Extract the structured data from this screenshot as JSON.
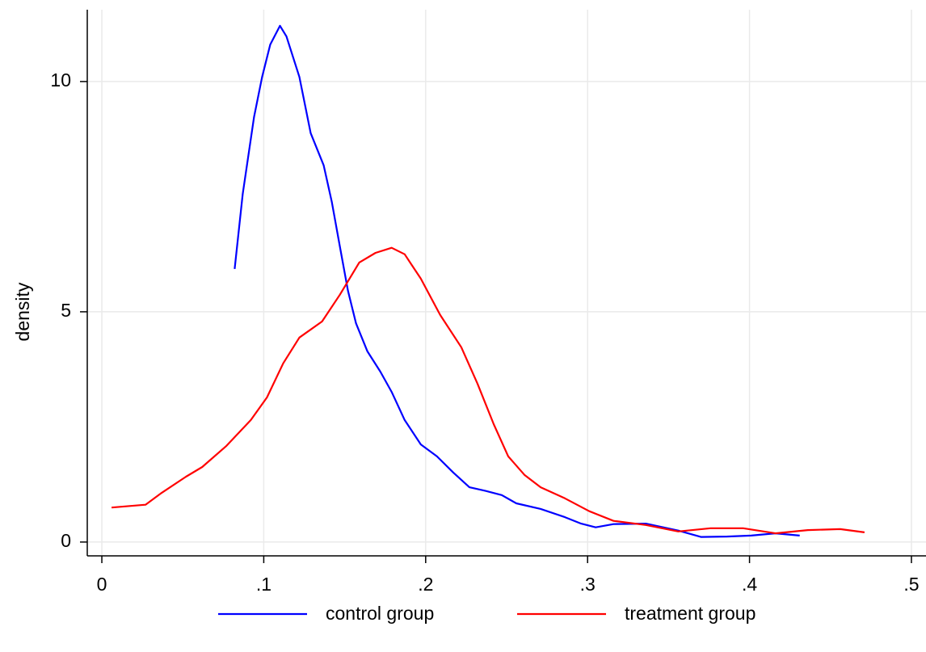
{
  "chart_data": {
    "type": "line",
    "y_label": "density",
    "xlim": [
      -0.009,
      0.509
    ],
    "ylim": [
      -0.3,
      11.56
    ],
    "xticks": [
      0,
      {
        "value": 0.1,
        "label": ".1"
      },
      {
        "value": 0.2,
        "label": ".2"
      },
      {
        "value": 0.3,
        "label": ".3"
      },
      {
        "value": 0.4,
        "label": ".4"
      },
      {
        "value": 0.5,
        "label": ".5"
      }
    ],
    "yticks": [
      0,
      5,
      10
    ],
    "grid": true,
    "legend": "bottom",
    "series": [
      {
        "name": "control group",
        "color": "#0000ff",
        "x": [
          0.082,
          0.087,
          0.094,
          0.099,
          0.104,
          0.11,
          0.114,
          0.122,
          0.129,
          0.137,
          0.142,
          0.147,
          0.152,
          0.157,
          0.164,
          0.172,
          0.179,
          0.187,
          0.197,
          0.207,
          0.217,
          0.227,
          0.237,
          0.247,
          0.256,
          0.271,
          0.286,
          0.296,
          0.305,
          0.316,
          0.336,
          0.356,
          0.37,
          0.386,
          0.401,
          0.416,
          0.431
        ],
        "values": [
          5.93,
          7.56,
          9.23,
          10.1,
          10.8,
          11.21,
          10.98,
          10.1,
          8.88,
          8.18,
          7.39,
          6.42,
          5.46,
          4.75,
          4.14,
          3.7,
          3.26,
          2.65,
          2.12,
          1.86,
          1.51,
          1.19,
          1.11,
          1.02,
          0.84,
          0.72,
          0.54,
          0.4,
          0.32,
          0.39,
          0.4,
          0.25,
          0.11,
          0.12,
          0.14,
          0.19,
          0.14
        ]
      },
      {
        "name": "treatment group",
        "color": "#ff0000",
        "x": [
          0.006,
          0.027,
          0.037,
          0.052,
          0.062,
          0.077,
          0.092,
          0.102,
          0.112,
          0.122,
          0.136,
          0.147,
          0.159,
          0.169,
          0.179,
          0.187,
          0.197,
          0.209,
          0.222,
          0.232,
          0.242,
          0.251,
          0.261,
          0.271,
          0.286,
          0.301,
          0.316,
          0.336,
          0.356,
          0.376,
          0.396,
          0.416,
          0.436,
          0.456,
          0.471
        ],
        "values": [
          0.75,
          0.81,
          1.07,
          1.42,
          1.63,
          2.09,
          2.65,
          3.14,
          3.88,
          4.44,
          4.79,
          5.37,
          6.07,
          6.28,
          6.39,
          6.25,
          5.72,
          4.93,
          4.23,
          3.44,
          2.56,
          1.86,
          1.46,
          1.19,
          0.95,
          0.67,
          0.46,
          0.37,
          0.23,
          0.3,
          0.3,
          0.19,
          0.26,
          0.28,
          0.21
        ]
      }
    ]
  }
}
